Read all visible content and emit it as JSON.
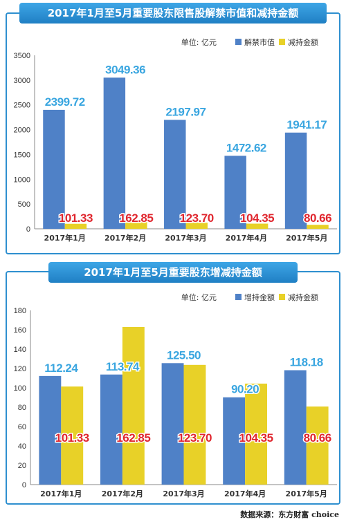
{
  "footer": {
    "source": "数据来源：东方财富 choice"
  },
  "colors": {
    "blue": "#4f81c7",
    "yellow": "#e8d128",
    "blue_label": "#3aa6e0",
    "red_label": "#e0262e"
  },
  "chart_data": [
    {
      "type": "bar",
      "title": "2017年1月至5月重要股东限售股解禁市值和减持金额",
      "unit_label": "单位: 亿元",
      "categories": [
        "2017年1月",
        "2017年2月",
        "2017年3月",
        "2017年4月",
        "2017年5月"
      ],
      "series": [
        {
          "name": "解禁市值",
          "values": [
            2399.72,
            3049.36,
            2197.97,
            1472.62,
            1941.17
          ],
          "labels": [
            "2399.72",
            "3049.36",
            "2197.97",
            "1472.62",
            "1941.17"
          ]
        },
        {
          "name": "减持金额",
          "values": [
            101.33,
            162.85,
            123.7,
            104.35,
            80.66
          ],
          "labels": [
            "101.33",
            "162.85",
            "123.70",
            "104.35",
            "80.66"
          ]
        }
      ],
      "ylim": [
        0,
        3500
      ],
      "yticks": [
        "0",
        "500",
        "1000",
        "1500",
        "2000",
        "2500",
        "3000",
        "3500"
      ],
      "grid": false,
      "legend": "top-right"
    },
    {
      "type": "bar",
      "title": "2017年1月至5月重要股东增减持金额",
      "unit_label": "单位: 亿元",
      "categories": [
        "2017年1月",
        "2017年2月",
        "2017年3月",
        "2017年4月",
        "2017年5月"
      ],
      "series": [
        {
          "name": "增持金额",
          "values": [
            112.24,
            113.74,
            125.5,
            90.2,
            118.18
          ],
          "labels": [
            "112.24",
            "113.74",
            "125.50",
            "90.20",
            "118.18"
          ]
        },
        {
          "name": "减持金额",
          "values": [
            101.33,
            162.85,
            123.7,
            104.35,
            80.66
          ],
          "labels": [
            "101.33",
            "162.85",
            "123.70",
            "104.35",
            "80.66"
          ]
        }
      ],
      "ylim": [
        0,
        180
      ],
      "yticks": [
        "0",
        "20",
        "40",
        "60",
        "80",
        "100",
        "120",
        "140",
        "160",
        "180"
      ],
      "grid": false,
      "legend": "top-right"
    }
  ]
}
